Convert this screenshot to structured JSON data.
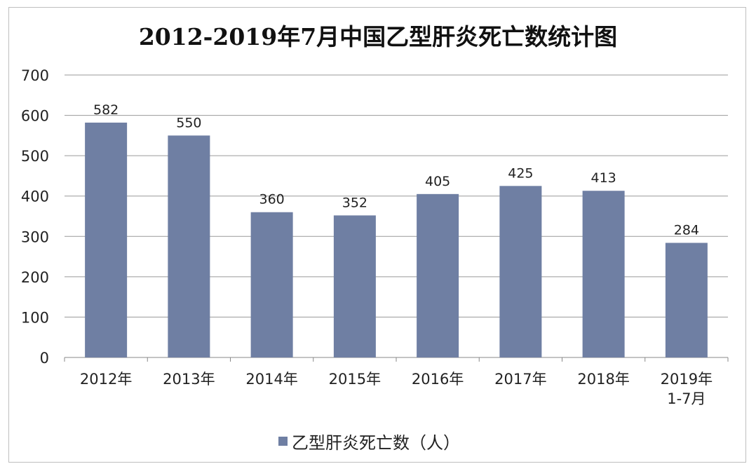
{
  "chart_data": {
    "type": "bar",
    "title": "2012-2019年7月中国乙型肝炎死亡数统计图",
    "categories": [
      [
        "2012年"
      ],
      [
        "2013年"
      ],
      [
        "2014年"
      ],
      [
        "2015年"
      ],
      [
        "2016年"
      ],
      [
        "2017年"
      ],
      [
        "2018年"
      ],
      [
        "2019年",
        "1-7月"
      ]
    ],
    "series": [
      {
        "name": "乙型肝炎死亡数（人）",
        "values": [
          582,
          550,
          360,
          352,
          405,
          425,
          413,
          284
        ],
        "color": "#6f7fa3"
      }
    ],
    "ylim": [
      0,
      700
    ],
    "yticks": [
      0,
      100,
      200,
      300,
      400,
      500,
      600,
      700
    ],
    "grid": true,
    "legend": "bottom",
    "xlabel": "",
    "ylabel": ""
  }
}
